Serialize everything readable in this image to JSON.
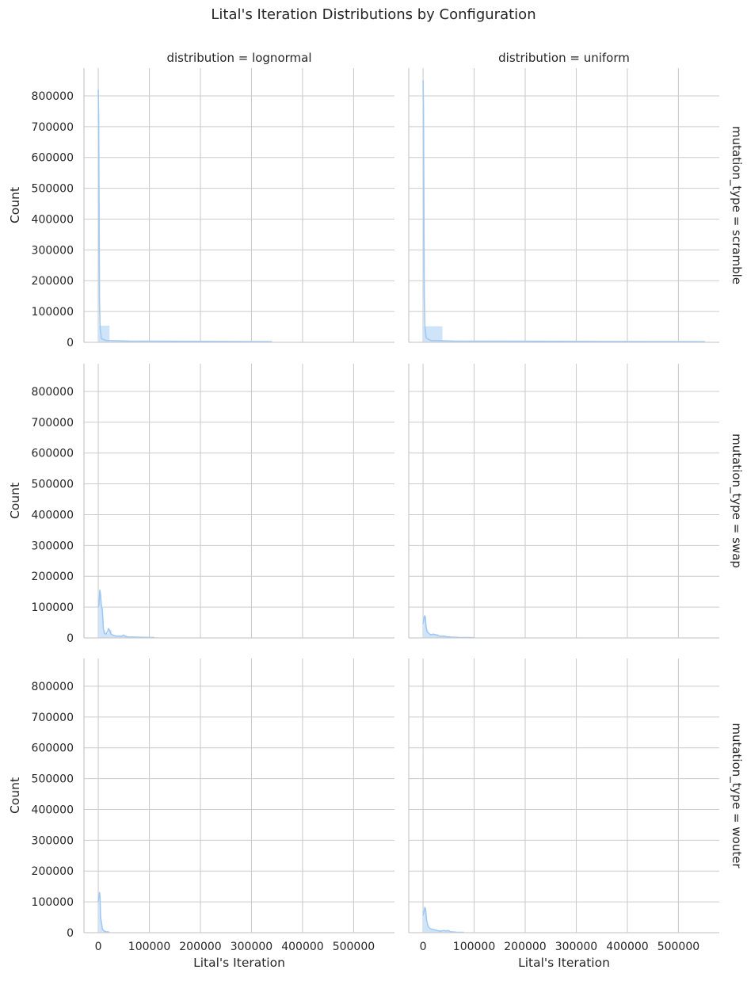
{
  "chart_data": {
    "type": "histogram",
    "title": "Lital's Iteration Distributions by Configuration",
    "xlabel": "Lital's Iteration",
    "ylabel": "Count",
    "xlim": [
      -28000,
      580000
    ],
    "ylim": [
      0,
      890000
    ],
    "x_ticks": [
      0,
      100000,
      200000,
      300000,
      400000,
      500000
    ],
    "y_ticks": [
      0,
      100000,
      200000,
      300000,
      400000,
      500000,
      600000,
      700000,
      800000
    ],
    "x_tick_labels": [
      "0",
      "100000",
      "200000",
      "300000",
      "400000",
      "500000"
    ],
    "y_tick_labels": [
      "0",
      "100000",
      "200000",
      "300000",
      "400000",
      "500000",
      "600000",
      "700000",
      "800000"
    ],
    "grid": true,
    "color": "#a1c9f4",
    "bar_fill": "#cfe3f9",
    "col_titles": [
      "distribution = lognormal",
      "distribution = uniform"
    ],
    "row_titles": [
      "mutation_type = scramble",
      "mutation_type = swap",
      "mutation_type = wouter"
    ],
    "panels": [
      {
        "row": 0,
        "col": 0,
        "bars": [
          [
            0,
            22000,
            54000
          ],
          [
            22000,
            340000,
            3000
          ]
        ],
        "kde": [
          [
            0,
            820000
          ],
          [
            800,
            720000
          ],
          [
            1600,
            430000
          ],
          [
            2400,
            130000
          ],
          [
            3500,
            50000
          ],
          [
            6000,
            12000
          ],
          [
            15000,
            6000
          ],
          [
            60000,
            4000
          ],
          [
            200000,
            3000
          ],
          [
            340000,
            2000
          ]
        ]
      },
      {
        "row": 0,
        "col": 1,
        "bars": [
          [
            0,
            38000,
            52000
          ],
          [
            38000,
            552000,
            3000
          ]
        ],
        "kde": [
          [
            0,
            850000
          ],
          [
            800,
            760000
          ],
          [
            1600,
            470000
          ],
          [
            2400,
            150000
          ],
          [
            3500,
            55000
          ],
          [
            6000,
            14000
          ],
          [
            15000,
            6000
          ],
          [
            60000,
            4000
          ],
          [
            300000,
            3000
          ],
          [
            552000,
            2000
          ]
        ]
      },
      {
        "row": 1,
        "col": 0,
        "bars": [
          [
            0,
            2000,
            100000
          ],
          [
            2000,
            5000,
            150000
          ],
          [
            5000,
            9000,
            100000
          ],
          [
            9000,
            14000,
            25000
          ],
          [
            14000,
            20000,
            14000
          ],
          [
            20000,
            26000,
            25000
          ],
          [
            26000,
            34000,
            8000
          ],
          [
            34000,
            44000,
            5000
          ],
          [
            44000,
            56000,
            8000
          ],
          [
            56000,
            80000,
            3000
          ],
          [
            80000,
            120000,
            1500
          ]
        ],
        "kde": [
          [
            0,
            100000
          ],
          [
            1500,
            110000
          ],
          [
            3000,
            155000
          ],
          [
            4500,
            140000
          ],
          [
            6000,
            105000
          ],
          [
            8000,
            90000
          ],
          [
            10000,
            30000
          ],
          [
            12000,
            15000
          ],
          [
            15000,
            12000
          ],
          [
            18000,
            20000
          ],
          [
            20000,
            30000
          ],
          [
            22000,
            25000
          ],
          [
            25000,
            12000
          ],
          [
            30000,
            8000
          ],
          [
            35000,
            6000
          ],
          [
            40000,
            6000
          ],
          [
            45000,
            5000
          ],
          [
            50000,
            9000
          ],
          [
            53000,
            4000
          ],
          [
            60000,
            3000
          ],
          [
            80000,
            2000
          ],
          [
            110000,
            1000
          ]
        ]
      },
      {
        "row": 1,
        "col": 1,
        "bars": [
          [
            0,
            2000,
            45000
          ],
          [
            2000,
            6000,
            70000
          ],
          [
            6000,
            10000,
            25000
          ],
          [
            10000,
            20000,
            12000
          ],
          [
            20000,
            30000,
            12000
          ],
          [
            30000,
            45000,
            7000
          ],
          [
            45000,
            65000,
            3000
          ],
          [
            65000,
            100000,
            1500
          ]
        ],
        "kde": [
          [
            0,
            45000
          ],
          [
            1500,
            60000
          ],
          [
            3000,
            72000
          ],
          [
            4500,
            65000
          ],
          [
            6000,
            35000
          ],
          [
            8000,
            20000
          ],
          [
            11000,
            15000
          ],
          [
            15000,
            10000
          ],
          [
            20000,
            12000
          ],
          [
            25000,
            10000
          ],
          [
            30000,
            7000
          ],
          [
            35000,
            5000
          ],
          [
            40000,
            6000
          ],
          [
            45000,
            4000
          ],
          [
            55000,
            2500
          ],
          [
            70000,
            1500
          ],
          [
            100000,
            800
          ]
        ]
      },
      {
        "row": 2,
        "col": 0,
        "bars": [
          [
            0,
            2000,
            100000
          ],
          [
            2000,
            4000,
            130000
          ],
          [
            4000,
            6000,
            45000
          ],
          [
            6000,
            9000,
            15000
          ],
          [
            9000,
            14000,
            5000
          ],
          [
            14000,
            22000,
            2000
          ]
        ],
        "kde": [
          [
            0,
            100000
          ],
          [
            1500,
            120000
          ],
          [
            2500,
            130000
          ],
          [
            3500,
            110000
          ],
          [
            4500,
            50000
          ],
          [
            6000,
            35000
          ],
          [
            8000,
            12000
          ],
          [
            11000,
            6000
          ],
          [
            15000,
            3000
          ],
          [
            22000,
            1500
          ]
        ]
      },
      {
        "row": 2,
        "col": 1,
        "bars": [
          [
            0,
            2000,
            55000
          ],
          [
            2000,
            6000,
            80000
          ],
          [
            6000,
            10000,
            30000
          ],
          [
            10000,
            20000,
            12000
          ],
          [
            20000,
            30000,
            8000
          ],
          [
            30000,
            40000,
            5000
          ],
          [
            40000,
            52000,
            7000
          ],
          [
            52000,
            80000,
            1500
          ]
        ],
        "kde": [
          [
            0,
            55000
          ],
          [
            2000,
            70000
          ],
          [
            3500,
            82000
          ],
          [
            5000,
            75000
          ],
          [
            7000,
            40000
          ],
          [
            9000,
            25000
          ],
          [
            12000,
            15000
          ],
          [
            16000,
            12000
          ],
          [
            20000,
            10000
          ],
          [
            25000,
            8000
          ],
          [
            30000,
            6000
          ],
          [
            35000,
            5000
          ],
          [
            40000,
            7000
          ],
          [
            45000,
            6000
          ],
          [
            50000,
            7000
          ],
          [
            53000,
            3000
          ],
          [
            65000,
            1500
          ],
          [
            80000,
            700
          ]
        ]
      }
    ]
  }
}
